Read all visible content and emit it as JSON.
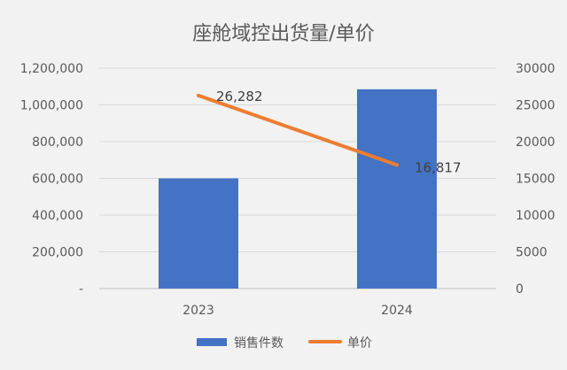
{
  "chart_data": {
    "type": "bar-line-combo",
    "title": "座舱域控出货量/单价",
    "categories": [
      "2023",
      "2024"
    ],
    "series": [
      {
        "name": "销售件数",
        "type": "bar",
        "axis": "left",
        "values": [
          600000,
          1085000
        ],
        "color": "#4472C4"
      },
      {
        "name": "单价",
        "type": "line",
        "axis": "right",
        "values": [
          26282,
          16817
        ],
        "labels": [
          "26,282",
          "16,817"
        ],
        "color": "#ED7D31"
      }
    ],
    "y_left": {
      "min": 0,
      "max": 1200000,
      "step": 200000,
      "tick_labels": [
        "-",
        "200,000",
        "400,000",
        "600,000",
        "800,000",
        "1,000,000",
        "1,200,000"
      ]
    },
    "y_right": {
      "min": 0,
      "max": 30000,
      "step": 5000,
      "tick_labels": [
        "0",
        "5000",
        "10000",
        "15000",
        "20000",
        "25000",
        "30000"
      ]
    },
    "grid": true,
    "legend_position": "bottom"
  }
}
